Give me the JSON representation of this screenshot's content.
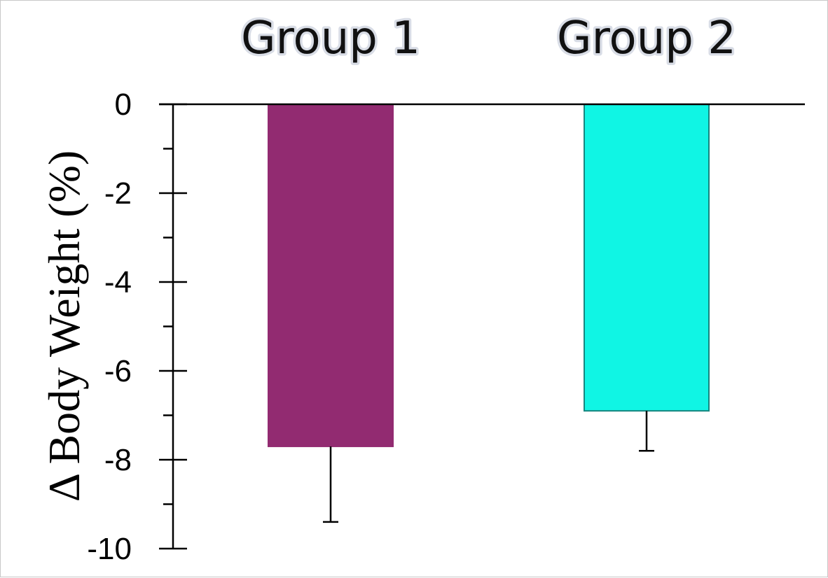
{
  "chart_data": {
    "type": "bar",
    "categories": [
      "Group 1",
      "Group 2"
    ],
    "values": [
      -7.7,
      -6.9
    ],
    "errors": [
      1.7,
      0.9
    ],
    "colors": [
      "#922b71",
      "#10f5e4"
    ],
    "bar_edge_colors": [
      "#922b71",
      "#17867f"
    ],
    "title": "",
    "xlabel": "",
    "ylabel": "Δ Body Weight (%)",
    "ylim": [
      -10,
      0
    ],
    "major_ticks": [
      0,
      -2,
      -4,
      -6,
      -8,
      -10
    ],
    "tick_labels": [
      "0",
      "-2",
      "-4",
      "-6",
      "-8",
      "-10"
    ],
    "minor_ticks": [
      -1,
      -3,
      -5,
      -7,
      -9
    ],
    "category_label_position": "top",
    "grid": false,
    "legend": false
  }
}
